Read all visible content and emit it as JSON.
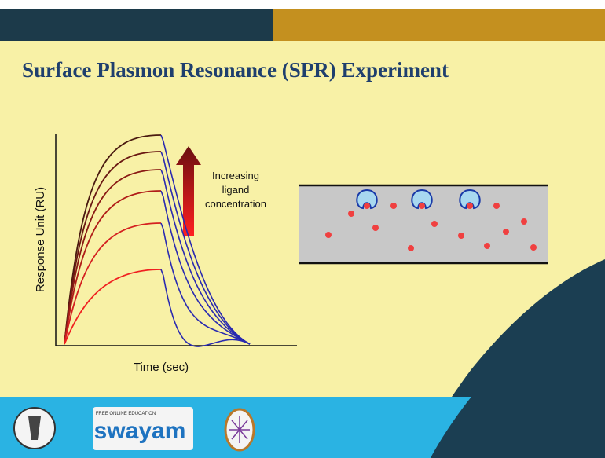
{
  "header": {
    "title": "Surface Plasmon Resonance (SPR) Experiment"
  },
  "plot": {
    "y_label": "Response Unit (RU)",
    "x_label": "Time (sec)",
    "annotation": [
      "Increasing",
      "ligand",
      "concentration"
    ]
  },
  "footer": {
    "logo_tagline": "FREE ONLINE EDUCATION",
    "logo_name": "swayam"
  }
}
